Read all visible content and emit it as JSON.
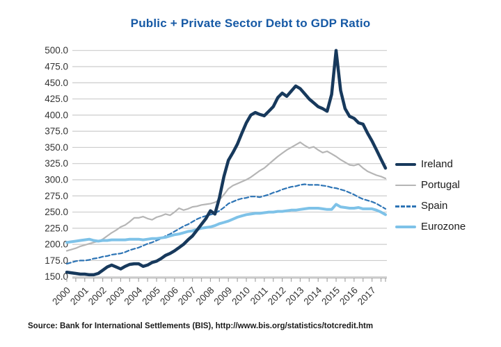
{
  "source": "Source: Bank for International Settlements (BIS), http://www.bis.org/statistics/totcredit.htm",
  "colors": {
    "title": "#1659a5",
    "grid": "#cccccc",
    "axis": "#a6a6a6",
    "tick_label": "#333333",
    "legend_text": "#1a1a1a"
  },
  "chart_data": {
    "type": "line",
    "title": "Public + Private Sector Debt to GDP Ratio",
    "xlabel": "",
    "ylabel": "",
    "ylim": [
      150,
      500
    ],
    "grid": "horizontal",
    "legend_position": "right",
    "x_frequency": "quarterly",
    "x_range": [
      "2000Q1",
      "2017Q4"
    ],
    "x_tick_labels": [
      "2000",
      "2001",
      "2002",
      "2003",
      "2004",
      "2005",
      "2006",
      "2007",
      "2008",
      "2009",
      "2010",
      "2011",
      "2012",
      "2013",
      "2014",
      "2015",
      "2016",
      "2017"
    ],
    "y_tick_labels": [
      "500.0",
      "475.0",
      "450.0",
      "425.0",
      "400.0",
      "375.0",
      "350.0",
      "325.0",
      "300.0",
      "275.0",
      "250.0",
      "225.0",
      "200.0",
      "175.0",
      "150.0"
    ],
    "series": [
      {
        "name": "Ireland",
        "color": "#17395c",
        "style": "solid",
        "width": 4.5,
        "values": [
          157,
          156,
          155,
          154,
          154,
          153,
          153,
          155,
          160,
          165,
          168,
          165,
          162,
          166,
          169,
          170,
          170,
          166,
          168,
          172,
          174,
          178,
          183,
          186,
          190,
          195,
          200,
          207,
          213,
          222,
          231,
          240,
          252,
          247,
          272,
          305,
          330,
          342,
          355,
          372,
          388,
          400,
          404,
          401,
          399,
          406,
          413,
          427,
          434,
          429,
          437,
          445,
          441,
          433,
          425,
          419,
          413,
          410,
          406,
          432,
          500,
          438,
          410,
          398,
          395,
          388,
          386,
          372,
          360,
          346,
          332,
          318
        ]
      },
      {
        "name": "Portugal",
        "color": "#b5b5b5",
        "style": "solid",
        "width": 2.2,
        "values": [
          190,
          192,
          194,
          197,
          199,
          201,
          203,
          205,
          208,
          213,
          218,
          222,
          227,
          230,
          235,
          241,
          241,
          243,
          240,
          238,
          242,
          244,
          247,
          245,
          250,
          256,
          253,
          255,
          258,
          259,
          261,
          262,
          263,
          265,
          269,
          277,
          286,
          291,
          294,
          297,
          300,
          304,
          309,
          314,
          318,
          324,
          330,
          336,
          341,
          346,
          350,
          354,
          358,
          353,
          349,
          351,
          346,
          342,
          344,
          340,
          336,
          331,
          327,
          323,
          322,
          324,
          318,
          313,
          310,
          307,
          305,
          302
        ]
      },
      {
        "name": "Spain",
        "color": "#2d74b5",
        "style": "dashed",
        "width": 2.2,
        "values": [
          170,
          172,
          174,
          175,
          175,
          176,
          178,
          179,
          181,
          182,
          184,
          185,
          186,
          188,
          191,
          193,
          195,
          198,
          201,
          203,
          206,
          209,
          213,
          216,
          220,
          224,
          228,
          231,
          235,
          239,
          242,
          244,
          246,
          248,
          252,
          257,
          263,
          266,
          269,
          271,
          272,
          274,
          274,
          273,
          275,
          277,
          280,
          282,
          285,
          287,
          289,
          290,
          292,
          293,
          292,
          292,
          292,
          291,
          290,
          288,
          287,
          285,
          283,
          280,
          277,
          273,
          270,
          268,
          266,
          263,
          259,
          255
        ]
      },
      {
        "name": "Eurozone",
        "color": "#7ec2e8",
        "style": "solid",
        "width": 4,
        "values": [
          203,
          204,
          205,
          206,
          207,
          208,
          206,
          205,
          206,
          206,
          207,
          207,
          207,
          207,
          208,
          208,
          208,
          207,
          208,
          209,
          209,
          210,
          211,
          213,
          215,
          216,
          218,
          220,
          221,
          223,
          225,
          226,
          227,
          229,
          232,
          234,
          236,
          239,
          242,
          244,
          246,
          247,
          248,
          248,
          249,
          250,
          250,
          251,
          251,
          252,
          253,
          253,
          254,
          255,
          256,
          256,
          256,
          255,
          254,
          254,
          262,
          258,
          257,
          256,
          256,
          257,
          255,
          255,
          255,
          253,
          250,
          246
        ]
      }
    ]
  }
}
